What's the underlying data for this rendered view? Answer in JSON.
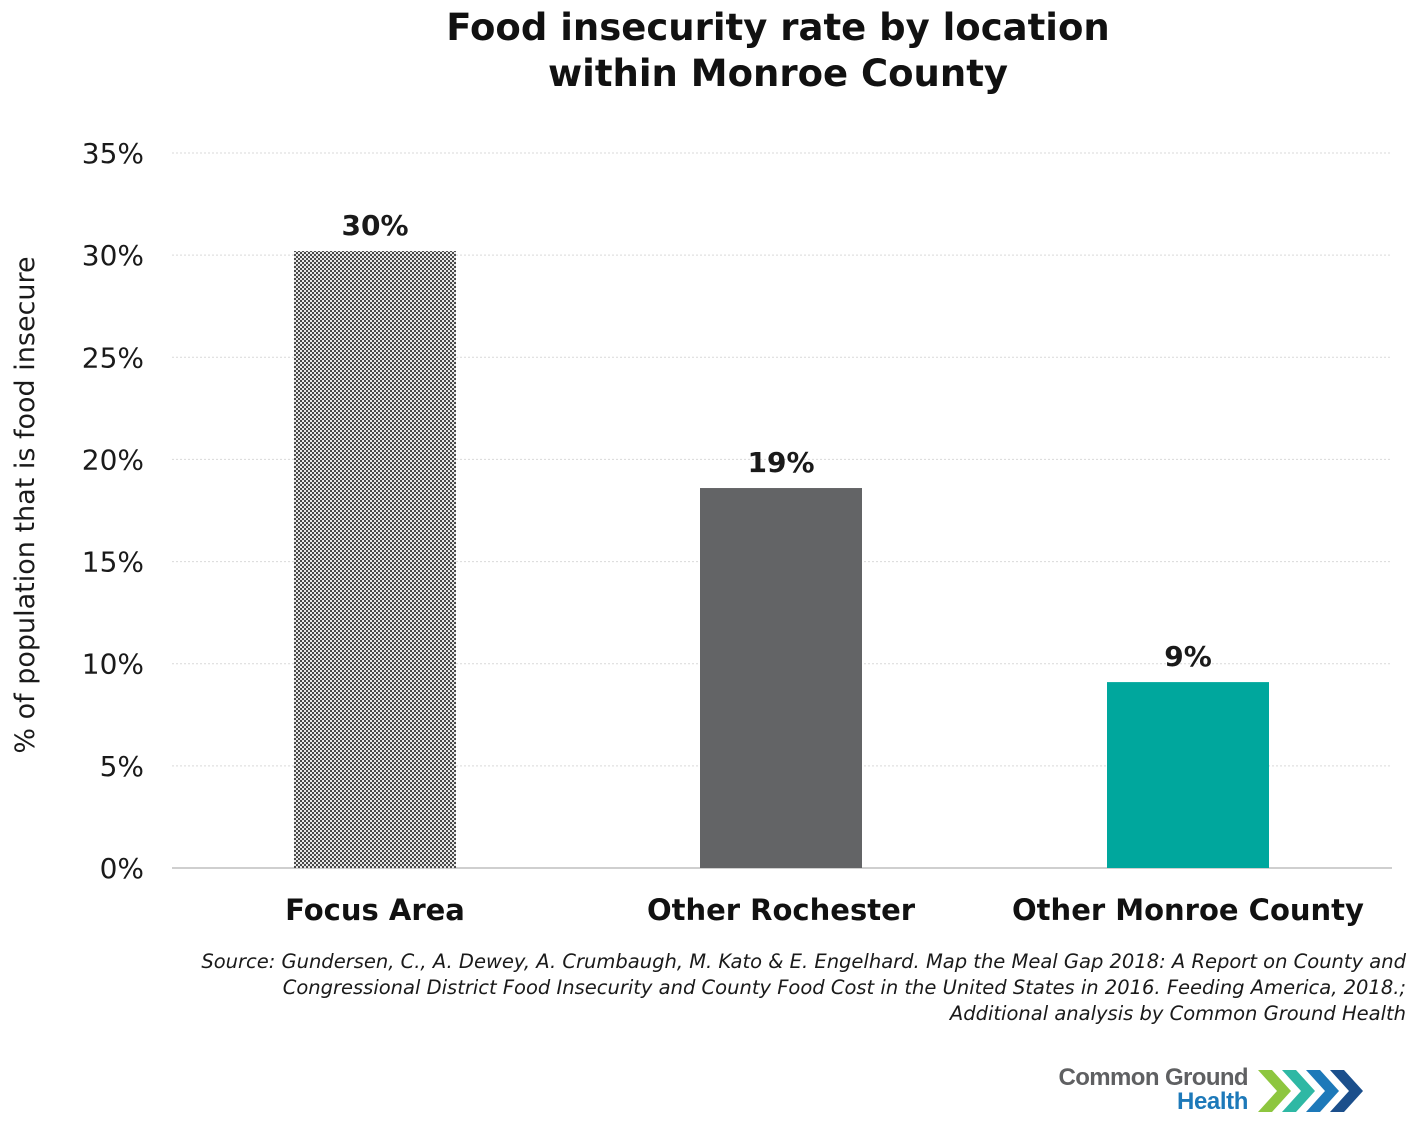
{
  "chart_data": {
    "type": "bar",
    "title_lines": [
      "Food insecurity rate by location",
      "within Monroe County"
    ],
    "ylabel": "% of population that is food insecure",
    "xlabel": "",
    "ylim": [
      0,
      35
    ],
    "yticks": [
      0,
      5,
      10,
      15,
      20,
      25,
      30,
      35
    ],
    "ytick_labels": [
      "0%",
      "5%",
      "10%",
      "15%",
      "20%",
      "25%",
      "30%",
      "35%"
    ],
    "grid": true,
    "categories": [
      "Focus Area",
      "Other Rochester",
      "Other Monroe County"
    ],
    "values": [
      30.2,
      18.6,
      9.1
    ],
    "data_labels": [
      "30%",
      "19%",
      "9%"
    ],
    "bar_colors": [
      "pattern-dots",
      "#636466",
      "#00a79d"
    ]
  },
  "source": {
    "lines": [
      "Source: Gundersen, C., A. Dewey, A. Crumbaugh, M. Kato & E. Engelhard. Map the Meal Gap 2018: A Report on County and",
      "Congressional District Food Insecurity and County Food Cost in the United States in 2016. Feeding America, 2018.;",
      "Additional analysis by Common Ground Health"
    ]
  },
  "logo": {
    "line1": "Common Ground",
    "line2": "Health",
    "icon": "chevrons-icon",
    "chevron_colors": [
      "#8dc63f",
      "#2eb8a4",
      "#1d79b9",
      "#1b4f8c"
    ]
  }
}
